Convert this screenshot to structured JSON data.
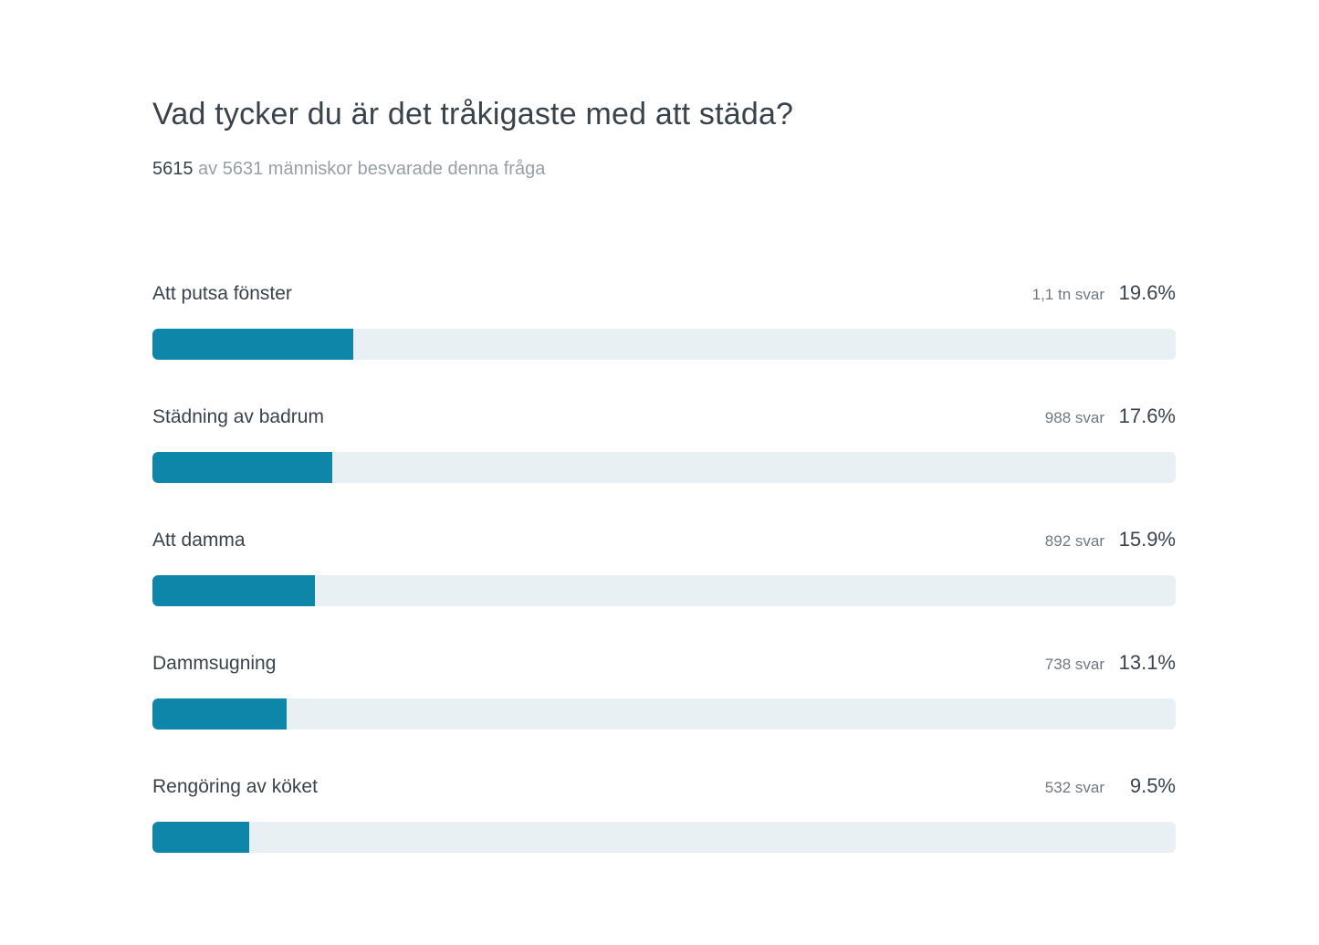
{
  "colors": {
    "page_bg": "#ffffff",
    "bar_fill": "#0e86a9",
    "bar_track": "#e9f0f4",
    "text_dark": "#3a434b",
    "text_muted": "#70787f",
    "text_light": "#989fa7"
  },
  "header": {
    "title": "Vad tycker du är det tråkigaste med att städa?",
    "answered_count": "5615",
    "answered_rest": " av 5631 människor besvarade denna fråga"
  },
  "chart_data": {
    "type": "bar",
    "orientation": "horizontal",
    "title": "Vad tycker du är det tråkigaste med att städa?",
    "subtitle": "5615 av 5631 människor besvarade denna fråga",
    "categories": [
      "Att putsa fönster",
      "Städning av badrum",
      "Att damma",
      "Dammsugning",
      "Rengöring av köket"
    ],
    "values": [
      19.6,
      17.6,
      15.9,
      13.1,
      9.5
    ],
    "unit": "%",
    "xlim": [
      0,
      100
    ],
    "grid": false,
    "legend": false,
    "rows": [
      {
        "label": "Att putsa fönster",
        "count_label": "1,1 tn svar",
        "percent": 19.6,
        "percent_label": "19.6%"
      },
      {
        "label": "Städning av badrum",
        "count_label": "988 svar",
        "percent": 17.6,
        "percent_label": "17.6%"
      },
      {
        "label": "Att damma",
        "count_label": "892 svar",
        "percent": 15.9,
        "percent_label": "15.9%"
      },
      {
        "label": "Dammsugning",
        "count_label": "738 svar",
        "percent": 13.1,
        "percent_label": "13.1%"
      },
      {
        "label": "Rengöring av köket",
        "count_label": "532 svar",
        "percent": 9.5,
        "percent_label": "9.5%"
      }
    ]
  }
}
